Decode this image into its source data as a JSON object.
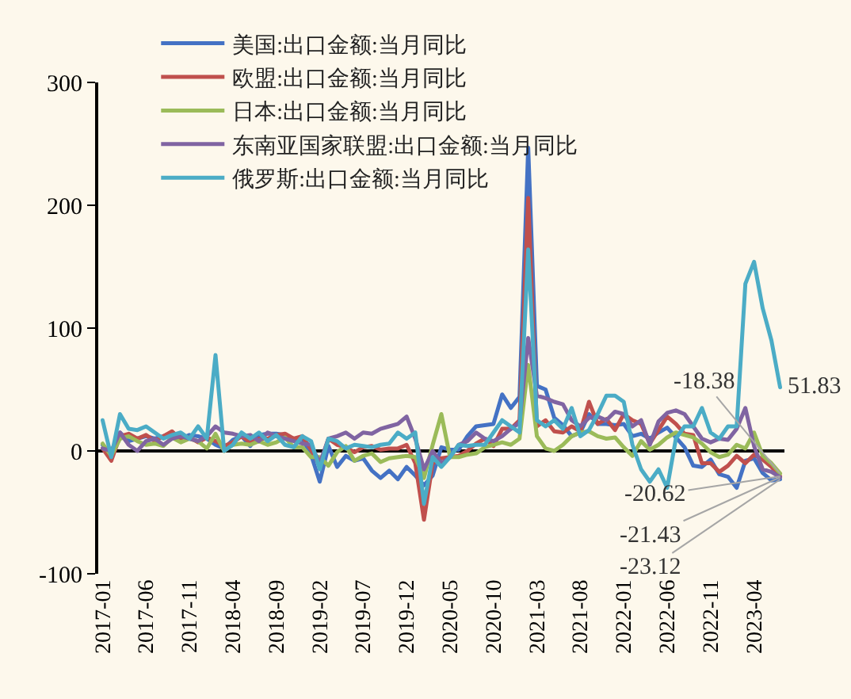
{
  "chart_data": {
    "type": "line",
    "categories": [
      "2017-01",
      null,
      null,
      null,
      null,
      "2017-06",
      null,
      null,
      null,
      null,
      "2017-11",
      null,
      null,
      null,
      null,
      "2018-04",
      null,
      null,
      null,
      null,
      "2018-09",
      null,
      null,
      null,
      null,
      "2019-02",
      null,
      null,
      null,
      null,
      "2019-07",
      null,
      null,
      null,
      null,
      "2019-12",
      null,
      null,
      null,
      null,
      "2020-05",
      null,
      null,
      null,
      null,
      "2020-10",
      null,
      null,
      null,
      null,
      "2021-03",
      null,
      null,
      null,
      null,
      "2021-08",
      null,
      null,
      null,
      null,
      "2022-01",
      null,
      null,
      null,
      null,
      "2022-06",
      null,
      null,
      null,
      null,
      "2022-11",
      null,
      null,
      null,
      null,
      "2023-04",
      null,
      null,
      null
    ],
    "series": [
      {
        "name": "美国:出口金额:当月同比",
        "color": "#4472c4",
        "values": [
          5,
          -5,
          15,
          8,
          10,
          12,
          10,
          12,
          15,
          10,
          13,
          12,
          10,
          5,
          2,
          9,
          12,
          4,
          13,
          14,
          14,
          13,
          9,
          10,
          -3,
          -25,
          4,
          -13,
          -4,
          -8,
          -6,
          -16,
          -22,
          -16,
          -23,
          -13,
          -20,
          -28,
          -20,
          3,
          1,
          1,
          12,
          20,
          21,
          22,
          46,
          35,
          44,
          247,
          53,
          50,
          27,
          21,
          12,
          15,
          30,
          22,
          22,
          21,
          22,
          12,
          14,
          10,
          15,
          19,
          11,
          3,
          -12,
          -13,
          -7,
          -19,
          -21,
          -30,
          -8,
          -6,
          -18,
          -24,
          -23.12
        ],
        "value_labels": [
          null,
          null,
          null,
          null,
          null,
          null,
          null,
          null,
          null,
          null,
          null,
          null,
          null,
          null,
          null,
          null,
          null,
          null,
          null,
          null,
          null,
          null,
          null,
          null,
          null,
          null,
          null,
          null,
          null,
          null,
          null,
          null,
          null,
          null,
          null,
          null,
          null,
          null,
          null,
          null,
          null,
          null,
          null,
          null,
          null,
          null,
          null,
          null,
          null,
          null,
          null,
          null,
          null,
          null,
          null,
          null,
          null,
          null,
          null,
          null,
          null,
          null,
          null,
          null,
          null,
          null,
          null,
          null,
          null,
          null,
          null,
          null,
          null,
          null,
          null,
          null,
          null,
          null,
          "-23.12"
        ]
      },
      {
        "name": "欧盟:出口金额:当月同比",
        "color": "#c0504d",
        "values": [
          2,
          -8,
          12,
          14,
          10,
          13,
          8,
          12,
          16,
          9,
          11,
          7,
          11,
          8,
          4,
          7,
          12,
          7,
          10,
          10,
          13,
          14,
          10,
          12,
          1,
          -12,
          10,
          5,
          3,
          -1,
          3,
          4,
          1,
          2,
          2,
          5,
          -10,
          -56,
          -10,
          -6,
          -5,
          -4,
          0,
          6,
          10,
          4,
          18,
          18,
          25,
          206,
          20,
          25,
          16,
          15,
          20,
          16,
          40,
          22,
          26,
          17,
          30,
          25,
          22,
          6,
          17,
          28,
          22,
          14,
          13,
          -10,
          -10,
          -17,
          -12,
          -4,
          -10,
          -3,
          -7,
          -13,
          -20.62
        ],
        "value_labels": [
          null,
          null,
          null,
          null,
          null,
          null,
          null,
          null,
          null,
          null,
          null,
          null,
          null,
          null,
          null,
          null,
          null,
          null,
          null,
          null,
          null,
          null,
          null,
          null,
          null,
          null,
          null,
          null,
          null,
          null,
          null,
          null,
          null,
          null,
          null,
          null,
          null,
          null,
          null,
          null,
          null,
          null,
          null,
          null,
          null,
          null,
          null,
          null,
          null,
          null,
          null,
          null,
          null,
          null,
          null,
          null,
          null,
          null,
          null,
          null,
          null,
          null,
          null,
          null,
          null,
          null,
          null,
          null,
          null,
          null,
          null,
          null,
          null,
          null,
          null,
          null,
          null,
          null,
          "-20.62"
        ]
      },
      {
        "name": "日本:出口金额:当月同比",
        "color": "#9bbb59",
        "values": [
          6,
          -4,
          10,
          12,
          8,
          5,
          6,
          4,
          11,
          7,
          10,
          8,
          2,
          14,
          0,
          5,
          6,
          5,
          8,
          5,
          7,
          11,
          3,
          3,
          -5,
          -5,
          -12,
          -1,
          4,
          -8,
          -4,
          -2,
          -9,
          -6,
          -5,
          -4,
          -5,
          -22,
          5,
          30,
          -5,
          -5,
          -3,
          -2,
          3,
          5,
          7,
          5,
          10,
          70,
          12,
          2,
          0,
          5,
          12,
          15,
          16,
          12,
          10,
          11,
          3,
          -4,
          8,
          1,
          5,
          11,
          15,
          13,
          11,
          6,
          -1,
          -5,
          -3,
          5,
          2,
          15,
          -4,
          -10,
          -18.38
        ],
        "value_labels": [
          null,
          null,
          null,
          null,
          null,
          null,
          null,
          null,
          null,
          null,
          null,
          null,
          null,
          null,
          null,
          null,
          null,
          null,
          null,
          null,
          null,
          null,
          null,
          null,
          null,
          null,
          null,
          null,
          null,
          null,
          null,
          null,
          null,
          null,
          null,
          null,
          null,
          null,
          null,
          null,
          null,
          null,
          null,
          null,
          null,
          null,
          null,
          null,
          null,
          null,
          null,
          null,
          null,
          null,
          null,
          null,
          null,
          null,
          null,
          null,
          null,
          null,
          null,
          null,
          null,
          null,
          null,
          null,
          null,
          null,
          null,
          null,
          null,
          null,
          null,
          null,
          null,
          null,
          "-18.38"
        ]
      },
      {
        "name": "东南亚国家联盟:出口金额:当月同比",
        "color": "#8064a2",
        "values": [
          2,
          0,
          15,
          5,
          0,
          8,
          10,
          5,
          10,
          12,
          10,
          8,
          12,
          20,
          15,
          14,
          12,
          13,
          8,
          15,
          12,
          10,
          8,
          6,
          5,
          -10,
          10,
          12,
          15,
          10,
          15,
          14,
          18,
          20,
          22,
          28,
          10,
          -15,
          0,
          -10,
          -5,
          5,
          8,
          15,
          10,
          8,
          12,
          18,
          23,
          92,
          45,
          43,
          40,
          38,
          25,
          20,
          27,
          28,
          25,
          32,
          30,
          20,
          25,
          5,
          24,
          31,
          33,
          30,
          20,
          10,
          7,
          10,
          9,
          18,
          35,
          4,
          -15,
          -17,
          -21.43
        ],
        "value_labels": [
          null,
          null,
          null,
          null,
          null,
          null,
          null,
          null,
          null,
          null,
          null,
          null,
          null,
          null,
          null,
          null,
          null,
          null,
          null,
          null,
          null,
          null,
          null,
          null,
          null,
          null,
          null,
          null,
          null,
          null,
          null,
          null,
          null,
          null,
          null,
          null,
          null,
          null,
          null,
          null,
          null,
          null,
          null,
          null,
          null,
          null,
          null,
          null,
          null,
          null,
          null,
          null,
          null,
          null,
          null,
          null,
          null,
          null,
          null,
          null,
          null,
          null,
          null,
          null,
          null,
          null,
          null,
          null,
          null,
          null,
          null,
          null,
          null,
          null,
          null,
          null,
          null,
          null,
          "-21.43"
        ]
      },
      {
        "name": "俄罗斯:出口金额:当月同比",
        "color": "#4bacc6",
        "values": [
          25,
          -5,
          30,
          18,
          17,
          20,
          15,
          10,
          13,
          15,
          10,
          20,
          10,
          78,
          0,
          5,
          15,
          10,
          15,
          8,
          13,
          5,
          3,
          12,
          8,
          -15,
          10,
          8,
          2,
          5,
          4,
          3,
          5,
          6,
          15,
          10,
          15,
          -43,
          -5,
          -13,
          -5,
          5,
          4,
          5,
          5,
          15,
          25,
          20,
          15,
          164,
          25,
          20,
          25,
          18,
          35,
          12,
          17,
          30,
          45,
          45,
          40,
          5,
          -15,
          -25,
          -15,
          -30,
          10,
          20,
          20,
          35,
          15,
          10,
          20,
          20,
          136,
          154,
          116,
          90,
          51.83
        ],
        "value_labels": [
          null,
          null,
          null,
          null,
          null,
          null,
          null,
          null,
          null,
          null,
          null,
          null,
          null,
          null,
          null,
          null,
          null,
          null,
          null,
          null,
          null,
          null,
          null,
          null,
          null,
          null,
          null,
          null,
          null,
          null,
          null,
          null,
          null,
          null,
          null,
          null,
          null,
          null,
          null,
          null,
          null,
          null,
          null,
          null,
          null,
          null,
          null,
          null,
          null,
          null,
          null,
          null,
          null,
          null,
          null,
          null,
          null,
          null,
          null,
          null,
          null,
          null,
          null,
          null,
          null,
          null,
          null,
          null,
          null,
          null,
          null,
          null,
          null,
          null,
          null,
          null,
          null,
          null,
          "51.83"
        ]
      }
    ],
    "ylim": [
      -100,
      300
    ],
    "yticks": [
      -100,
      0,
      100,
      200,
      300
    ],
    "ref_lines": [
      {
        "axis": "y",
        "value": 0,
        "color": "#000000"
      }
    ],
    "grid": false,
    "legend": "top",
    "marker": "none",
    "line_style": "solid"
  }
}
